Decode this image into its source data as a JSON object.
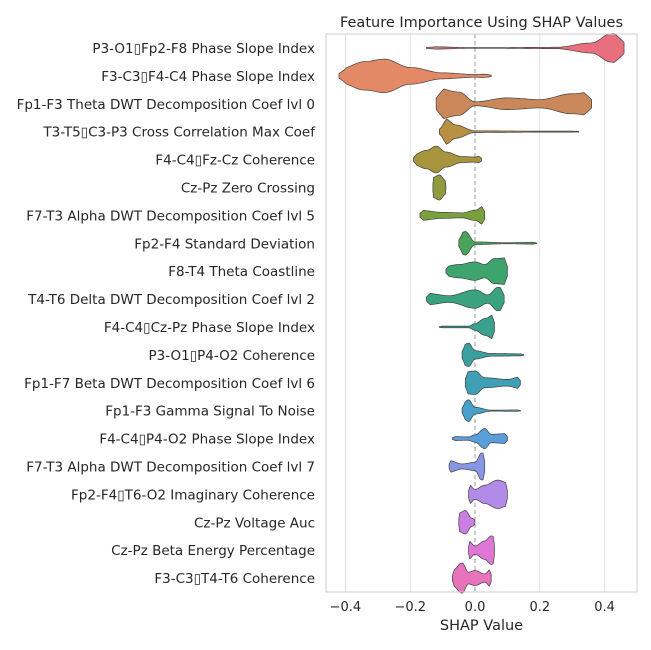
{
  "chart_data": {
    "type": "violin",
    "title": "Feature Importance Using SHAP Values",
    "xlabel": "SHAP Value",
    "xlim": [
      -0.46,
      0.5
    ],
    "xticks": [
      -0.4,
      -0.2,
      0.0,
      0.2,
      0.4
    ],
    "xtick_labels": [
      "−0.4",
      "−0.2",
      "0.0",
      "0.2",
      "0.4"
    ],
    "grid": "vertical",
    "zero_line": "dashed",
    "categories": [
      "P3-O1▯Fp2-F8 Phase Slope Index",
      "F3-C3▯F4-C4 Phase Slope Index",
      "Fp1-F3 Theta DWT Decomposition Coef lvl 0",
      "T3-T5▯C3-P3 Cross Correlation Max Coef",
      "F4-C4▯Fz-Cz Coherence",
      "Cz-Pz Zero Crossing",
      "F7-T3 Alpha DWT Decomposition Coef lvl 5",
      "Fp2-F4 Standard Deviation",
      "F8-T4 Theta Coastline",
      "T4-T6 Delta DWT Decomposition Coef lvl 2",
      "F4-C4▯Cz-Pz Phase Slope Index",
      "P3-O1▯P4-O2 Coherence",
      "Fp1-F7 Beta DWT Decomposition Coef lvl 6",
      "Fp1-F3 Gamma Signal To Noise",
      "F4-C4▯P4-O2 Phase Slope Index",
      "F7-T3 Alpha DWT Decomposition Coef lvl 7",
      "Fp2-F4▯T6-O2 Imaginary Coherence",
      "Cz-Pz Voltage Auc",
      "Cz-Pz Beta Energy Percentage",
      "F3-C3▯T4-T6 Coherence"
    ],
    "series": [
      {
        "min": -0.15,
        "max": 0.46,
        "color": "#e8707e",
        "profile": [
          [
            -0.15,
            0.08
          ],
          [
            0.0,
            0.015
          ],
          [
            0.25,
            0.04
          ],
          [
            0.36,
            0.3
          ],
          [
            0.42,
            0.85
          ],
          [
            0.46,
            0.95
          ]
        ]
      },
      {
        "min": -0.42,
        "max": 0.05,
        "color": "#e48966",
        "profile": [
          [
            -0.42,
            0.4
          ],
          [
            -0.34,
            0.85
          ],
          [
            -0.28,
            1.0
          ],
          [
            -0.2,
            0.5
          ],
          [
            -0.1,
            0.18
          ],
          [
            0.0,
            0.08
          ],
          [
            0.05,
            0.12
          ]
        ]
      },
      {
        "min": -0.12,
        "max": 0.36,
        "color": "#c9875a",
        "profile": [
          [
            -0.12,
            0.95
          ],
          [
            -0.05,
            0.7
          ],
          [
            0.0,
            0.12
          ],
          [
            0.1,
            0.35
          ],
          [
            0.2,
            0.25
          ],
          [
            0.3,
            0.6
          ],
          [
            0.36,
            0.7
          ]
        ]
      },
      {
        "min": -0.11,
        "max": 0.32,
        "color": "#b89042",
        "profile": [
          [
            -0.11,
            0.4
          ],
          [
            -0.09,
            0.75
          ],
          [
            -0.06,
            0.4
          ],
          [
            0.0,
            0.05
          ],
          [
            0.2,
            0.03
          ],
          [
            0.32,
            0.03
          ]
        ]
      },
      {
        "min": -0.19,
        "max": 0.02,
        "color": "#a8943c",
        "profile": [
          [
            -0.19,
            0.3
          ],
          [
            -0.15,
            0.55
          ],
          [
            -0.12,
            0.8
          ],
          [
            -0.09,
            0.45
          ],
          [
            -0.04,
            0.18
          ],
          [
            0.0,
            0.15
          ],
          [
            0.02,
            0.25
          ]
        ]
      },
      {
        "min": -0.13,
        "max": -0.09,
        "color": "#929a3e",
        "profile": [
          [
            -0.13,
            0.6
          ],
          [
            -0.11,
            0.75
          ],
          [
            -0.09,
            0.4
          ]
        ]
      },
      {
        "min": -0.17,
        "max": 0.03,
        "color": "#7ba03e",
        "profile": [
          [
            -0.17,
            0.3
          ],
          [
            -0.1,
            0.18
          ],
          [
            -0.04,
            0.15
          ],
          [
            0.0,
            0.3
          ],
          [
            0.03,
            0.6
          ]
        ]
      },
      {
        "min": -0.05,
        "max": 0.19,
        "color": "#4aa35a",
        "profile": [
          [
            -0.05,
            0.55
          ],
          [
            -0.03,
            0.7
          ],
          [
            0.0,
            0.08
          ],
          [
            0.1,
            0.03
          ],
          [
            0.19,
            0.06
          ]
        ]
      },
      {
        "min": -0.09,
        "max": 0.1,
        "color": "#3ca46c",
        "profile": [
          [
            -0.09,
            0.3
          ],
          [
            -0.05,
            0.4
          ],
          [
            0.0,
            0.55
          ],
          [
            0.03,
            0.4
          ],
          [
            0.06,
            0.75
          ],
          [
            0.1,
            0.8
          ]
        ]
      },
      {
        "min": -0.15,
        "max": 0.09,
        "color": "#3ba27f",
        "profile": [
          [
            -0.15,
            0.35
          ],
          [
            -0.08,
            0.2
          ],
          [
            0.0,
            0.55
          ],
          [
            0.04,
            0.25
          ],
          [
            0.07,
            0.7
          ],
          [
            0.09,
            0.65
          ]
        ]
      },
      {
        "min": -0.11,
        "max": 0.06,
        "color": "#3aa08f",
        "profile": [
          [
            -0.11,
            0.05
          ],
          [
            -0.02,
            0.05
          ],
          [
            0.0,
            0.2
          ],
          [
            0.03,
            0.5
          ],
          [
            0.06,
            0.75
          ]
        ]
      },
      {
        "min": -0.04,
        "max": 0.15,
        "color": "#3b9fa0",
        "profile": [
          [
            -0.04,
            0.55
          ],
          [
            -0.02,
            0.7
          ],
          [
            0.0,
            0.25
          ],
          [
            0.05,
            0.08
          ],
          [
            0.15,
            0.06
          ]
        ]
      },
      {
        "min": -0.03,
        "max": 0.14,
        "color": "#3e9fb5",
        "profile": [
          [
            -0.03,
            0.65
          ],
          [
            0.0,
            0.7
          ],
          [
            0.03,
            0.3
          ],
          [
            0.1,
            0.2
          ],
          [
            0.14,
            0.35
          ]
        ]
      },
      {
        "min": -0.04,
        "max": 0.14,
        "color": "#45a0cb",
        "profile": [
          [
            -0.04,
            0.4
          ],
          [
            -0.02,
            0.65
          ],
          [
            0.0,
            0.2
          ],
          [
            0.05,
            0.03
          ],
          [
            0.14,
            0.04
          ]
        ]
      },
      {
        "min": -0.07,
        "max": 0.1,
        "color": "#5a9ddb",
        "profile": [
          [
            -0.07,
            0.12
          ],
          [
            -0.02,
            0.1
          ],
          [
            0.0,
            0.22
          ],
          [
            0.03,
            0.6
          ],
          [
            0.05,
            0.25
          ],
          [
            0.1,
            0.3
          ]
        ]
      },
      {
        "min": -0.08,
        "max": 0.03,
        "color": "#8797e6",
        "profile": [
          [
            -0.08,
            0.35
          ],
          [
            -0.04,
            0.15
          ],
          [
            0.0,
            0.25
          ],
          [
            0.02,
            0.8
          ],
          [
            0.03,
            0.8
          ]
        ]
      },
      {
        "min": -0.02,
        "max": 0.1,
        "color": "#b28ae8",
        "profile": [
          [
            -0.02,
            0.6
          ],
          [
            0.0,
            0.3
          ],
          [
            0.03,
            0.55
          ],
          [
            0.07,
            0.85
          ],
          [
            0.1,
            0.7
          ]
        ]
      },
      {
        "min": -0.05,
        "max": 0.0,
        "color": "#cc7fe3",
        "profile": [
          [
            -0.05,
            0.55
          ],
          [
            -0.03,
            0.7
          ],
          [
            -0.01,
            0.25
          ],
          [
            0.0,
            0.15
          ]
        ]
      },
      {
        "min": -0.02,
        "max": 0.06,
        "color": "#df77d6",
        "profile": [
          [
            -0.02,
            0.55
          ],
          [
            0.0,
            0.25
          ],
          [
            0.03,
            0.55
          ],
          [
            0.05,
            0.85
          ],
          [
            0.06,
            0.8
          ]
        ]
      },
      {
        "min": -0.07,
        "max": 0.05,
        "color": "#e873bd",
        "profile": [
          [
            -0.07,
            0.45
          ],
          [
            -0.04,
            0.9
          ],
          [
            -0.02,
            0.35
          ],
          [
            0.0,
            0.45
          ],
          [
            0.03,
            0.25
          ],
          [
            0.05,
            0.55
          ]
        ]
      }
    ]
  }
}
